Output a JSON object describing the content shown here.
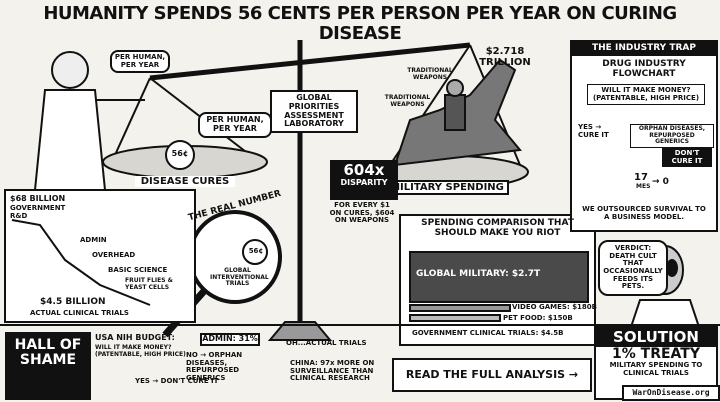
{
  "header": {
    "title": "HUMANITY SPENDS 56 CENTS PER PERSON PER YEAR ON CURING DISEASE"
  },
  "scale": {
    "bubble_left": "PER HUMAN, PER YEAR",
    "bubble_pan": "PER HUMAN, PER YEAR",
    "coin": "56¢",
    "left_label": "DISEASE CURES",
    "center_label": "GLOBAL PRIORITIES ASSESSMENT LABORATORY",
    "disparity_big": "604x",
    "disparity_word": "DISPARITY",
    "disparity_note": "FOR EVERY $1 ON CURES, $604 ON WEAPONS",
    "right_label": "MILITARY SPENDING",
    "military_total": "$2.718 TRILLION",
    "weapons_1": "TRADITIONAL WEAPONS",
    "weapons_2": "TRADITIONAL WEAPONS"
  },
  "industry_trap": {
    "title": "THE INDUSTRY TRAP",
    "heading": "DRUG INDUSTRY FLOWCHART",
    "question": "WILL IT MAKE MONEY? (PATENTABLE, HIGH PRICE)",
    "yes": "YES → CURE IT",
    "no": "ORPHAN DISEASES, REPURPOSED GENERICS",
    "dont": "DON'T CURE IT",
    "count": "17",
    "count_label": "MES",
    "zero": "→ 0",
    "footer": "WE OUTSOURCED SURVIVAL TO A BUSINESS MODEL."
  },
  "funnel": {
    "top": "$68 BILLION",
    "top_sub": "GOVERNMENT R&D",
    "steps": [
      "ADMIN",
      "OVERHEAD",
      "BASIC SCIENCE",
      "FRUIT FLIES & YEAST CELLS"
    ],
    "bottom": "$4.5 BILLION",
    "bottom_sub": "ACTUAL CLINICAL TRIALS"
  },
  "real_number": {
    "title": "THE REAL NUMBER",
    "coin": "56¢",
    "caption": "GLOBAL INTERVENTIONAL TRIALS"
  },
  "comparison": {
    "title": "SPENDING COMPARISON THAT SHOULD MAKE YOU RIOT",
    "rows": [
      "GLOBAL MILITARY: $2.7T",
      "VIDEO GAMES: $180B",
      "PET FOOD: $150B",
      "GOVERNMENT CLINICAL TRIALS: $4.5B"
    ]
  },
  "verdict": "VERDICT: DEATH CULT THAT OCCASIONALLY FEEDS ITS PETS.",
  "footer": {
    "hall": "HALL OF SHAME",
    "nih": "USA NIH BUDGET:",
    "nih_q": "WILL IT MAKE MONEY? (PATENTABLE, HIGH PRICE)",
    "admin": "ADMIN: 31%",
    "no": "NO → ORPHAN DISEASES, REPURPOSED GENERICS",
    "yes": "YES → DON'T CURE IT",
    "trials": "OH...ACTUAL TRIALS",
    "china": "CHINA: 97x MORE ON SURVEILLANCE THAN CLINICAL RESEARCH",
    "cta": "READ THE FULL ANALYSIS →",
    "solution": "SOLUTION",
    "treaty": "1% TREATY",
    "treaty_sub": "MILITARY SPENDING TO CLINICAL TRIALS",
    "site": "WarOnDisease.org"
  }
}
